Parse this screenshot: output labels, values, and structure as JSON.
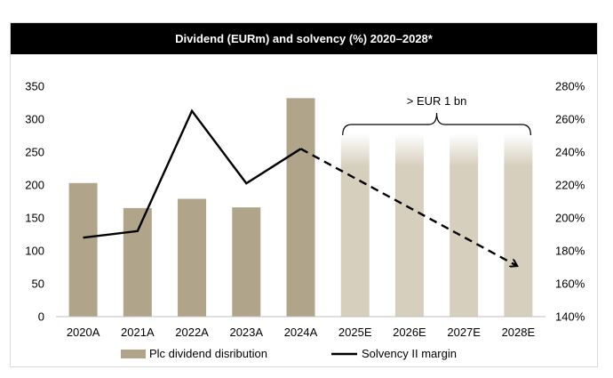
{
  "chart_data": {
    "type": "bar",
    "title": "Dividend (EURm) and solvency (%) 2020–2028*",
    "categories": [
      "2020A",
      "2021A",
      "2022A",
      "2023A",
      "2024A",
      "2025E",
      "2026E",
      "2027E",
      "2028E"
    ],
    "series": [
      {
        "name": "Plc dividend disribution",
        "type": "bar",
        "axis": "left",
        "values": [
          203,
          165,
          179,
          166,
          332,
          null,
          null,
          null,
          null
        ],
        "color": "#b0a58a"
      },
      {
        "name": "Solvency II margin",
        "type": "line",
        "axis": "right",
        "values": [
          188,
          192,
          265,
          221,
          242,
          null,
          null,
          null,
          null
        ],
        "projection": {
          "from": "2024A",
          "to": "2028E",
          "start": 242,
          "end": 171
        },
        "color": "#000000"
      }
    ],
    "estimate_categories": [
      "2025E",
      "2026E",
      "2027E",
      "2028E"
    ],
    "estimate_bar_color": "#d6cfbd",
    "annotation": "> EUR 1 bn",
    "y_left": {
      "min": 0,
      "max": 350,
      "step": 50,
      "ticks": [
        "0",
        "50",
        "100",
        "150",
        "200",
        "250",
        "300",
        "350"
      ]
    },
    "y_right": {
      "min": 140,
      "max": 280,
      "step": 20,
      "ticks": [
        "140%",
        "160%",
        "180%",
        "200%",
        "220%",
        "240%",
        "260%",
        "280%"
      ]
    },
    "legend": {
      "position": "bottom"
    }
  }
}
